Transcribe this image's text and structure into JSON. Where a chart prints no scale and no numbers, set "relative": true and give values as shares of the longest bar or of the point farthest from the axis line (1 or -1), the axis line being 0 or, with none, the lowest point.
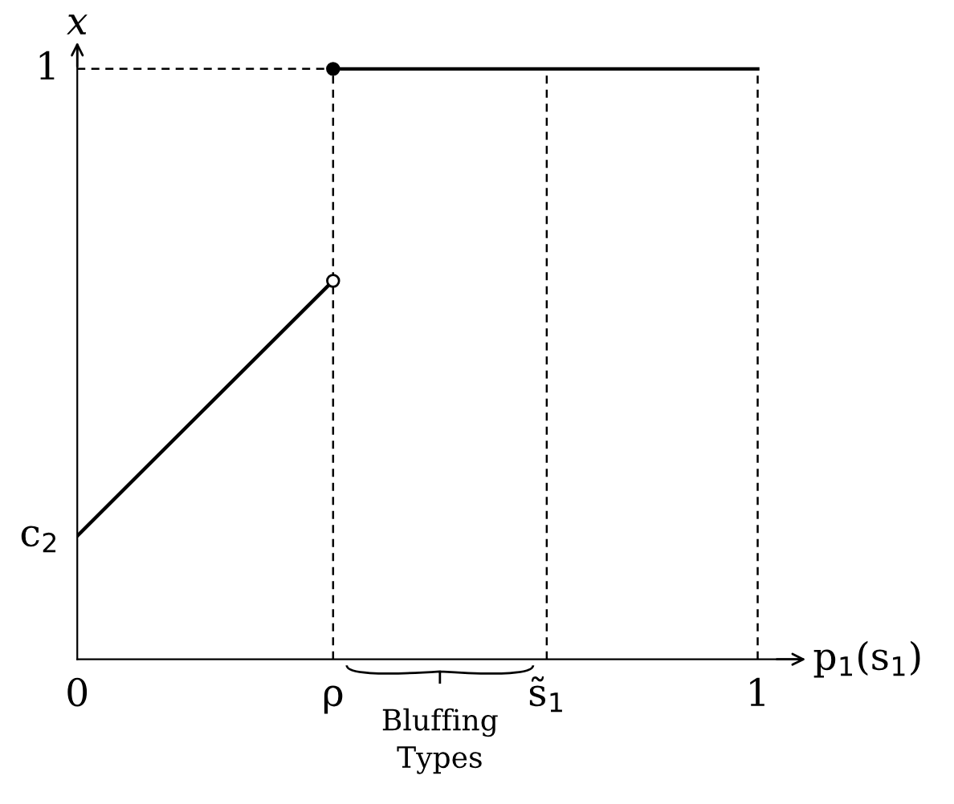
{
  "chart_data": {
    "type": "line",
    "relative": true,
    "xlabel": "p$_{1}$(s$_{1}$)",
    "ylabel": "x",
    "xlim": [
      0,
      1.06
    ],
    "xticks": [
      0,
      {
        "value": 0.376,
        "label": "ρ"
      },
      {
        "value": 0.69,
        "label": "s̃$_{1}$"
      },
      1
    ],
    "grid": false,
    "series": [
      {
        "color": "#000000",
        "x": [
          0,
          0.376
        ],
        "values": [
          0.209,
          0.641
        ],
        "line_style": "solid"
      },
      {
        "color": "#000000",
        "x": [
          0.376,
          1
        ],
        "values": [
          1,
          1
        ],
        "line_style": "solid"
      },
      {
        "color": "#000000",
        "x": [
          0,
          0.376
        ],
        "values": [
          1,
          1
        ],
        "line_style": "dashed"
      },
      {
        "color": "#000000",
        "x": [
          0.376,
          0.376
        ],
        "values": [
          0,
          1
        ],
        "line_style": "dashed"
      },
      {
        "color": "#000000",
        "x": [
          0.69,
          0.69
        ],
        "values": [
          0,
          1
        ],
        "line_style": "dashed"
      },
      {
        "color": "#000000",
        "x": [
          1,
          1
        ],
        "values": [
          0,
          1
        ],
        "line_style": "dashed"
      },
      {
        "type": "scatter",
        "color": "#000000",
        "x": [
          0.376
        ],
        "values": [
          1
        ]
      },
      {
        "type": "scatter",
        "color": "#ffffff",
        "x": [
          0.376
        ],
        "values": [
          0.641
        ]
      }
    ],
    "annotations": [
      {
        "text": "c$_{2}$",
        "x": 0,
        "y": 0.209
      },
      {
        "text": "1",
        "x": 0,
        "y": 1
      },
      "Bluffing\nTypes"
    ]
  }
}
